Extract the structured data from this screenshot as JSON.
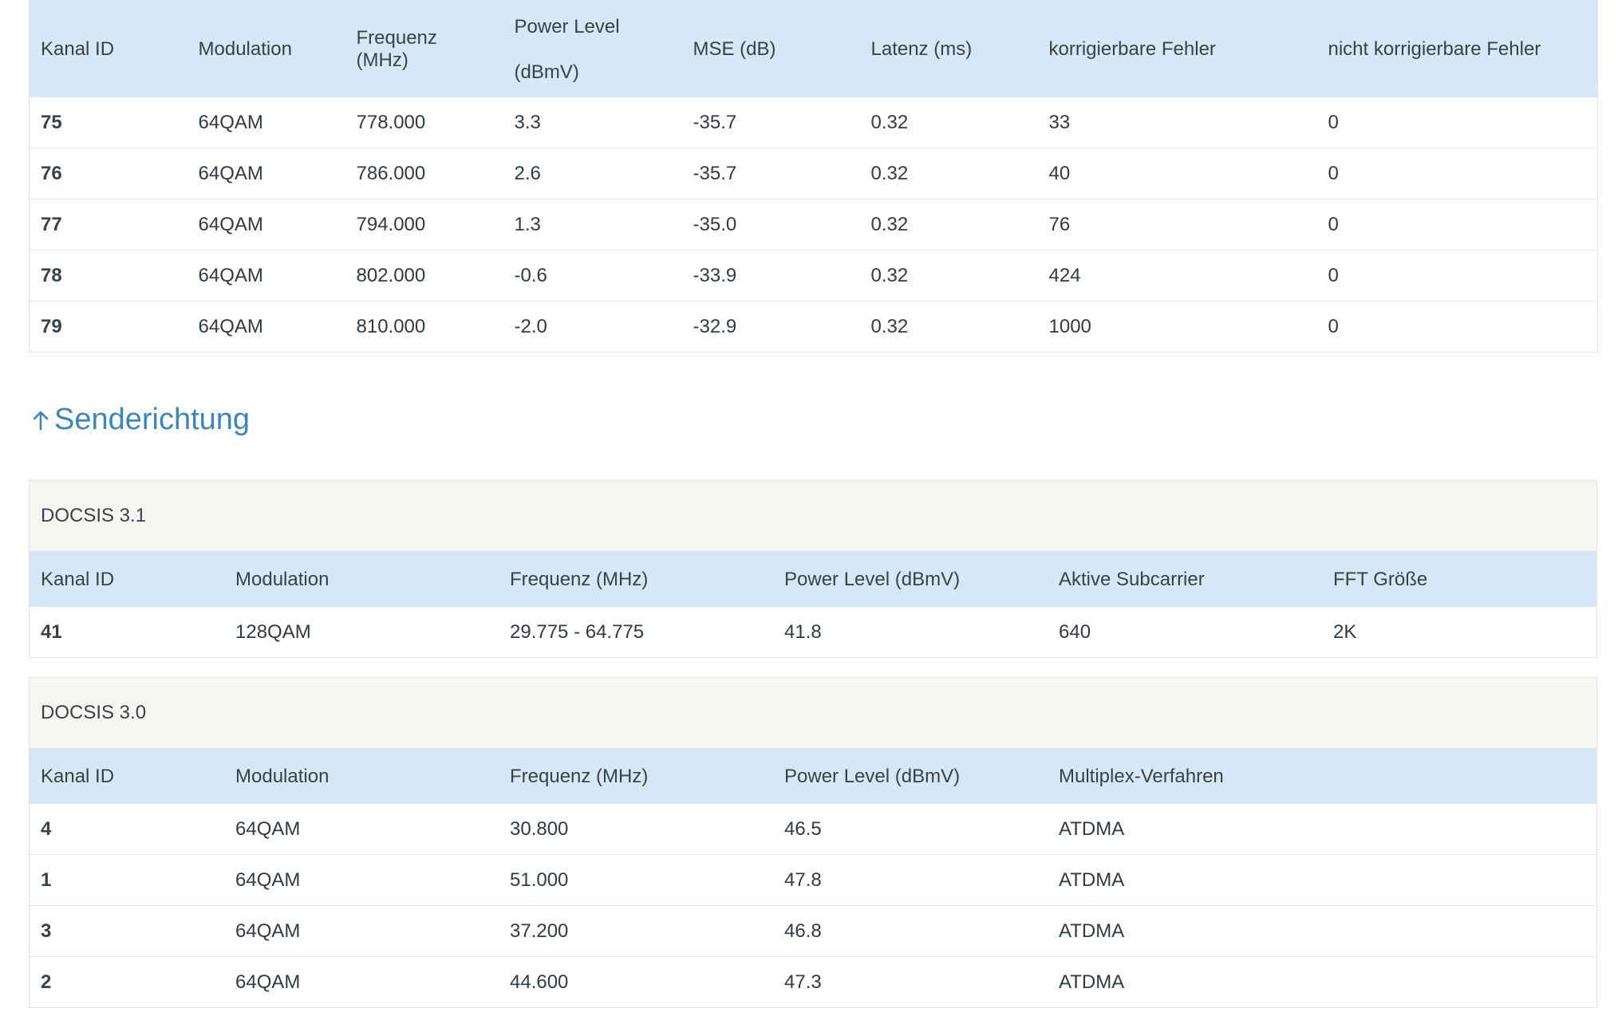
{
  "downstream": {
    "headers": [
      "Kanal ID",
      "Modulation",
      "Frequenz (MHz)",
      "Power Level",
      "(dBmV)",
      "MSE (dB)",
      "Latenz (ms)",
      "korrigierbare Fehler",
      "nicht korrigierbare Fehler"
    ],
    "rows": [
      {
        "id": "75",
        "mod": "64QAM",
        "freq": "778.000",
        "power": "3.3",
        "mse": "-35.7",
        "lat": "0.32",
        "korr": "33",
        "nkorr": "0"
      },
      {
        "id": "76",
        "mod": "64QAM",
        "freq": "786.000",
        "power": "2.6",
        "mse": "-35.7",
        "lat": "0.32",
        "korr": "40",
        "nkorr": "0"
      },
      {
        "id": "77",
        "mod": "64QAM",
        "freq": "794.000",
        "power": "1.3",
        "mse": "-35.0",
        "lat": "0.32",
        "korr": "76",
        "nkorr": "0"
      },
      {
        "id": "78",
        "mod": "64QAM",
        "freq": "802.000",
        "power": "-0.6",
        "mse": "-33.9",
        "lat": "0.32",
        "korr": "424",
        "nkorr": "0"
      },
      {
        "id": "79",
        "mod": "64QAM",
        "freq": "810.000",
        "power": "-2.0",
        "mse": "-32.9",
        "lat": "0.32",
        "korr": "1000",
        "nkorr": "0"
      }
    ]
  },
  "upstream": {
    "title": "Senderichtung",
    "icon": "arrow-up-icon",
    "accent": "#3b86bb",
    "docsis31": {
      "label": "DOCSIS 3.1",
      "headers": [
        "Kanal ID",
        "Modulation",
        "Frequenz (MHz)",
        "Power Level (dBmV)",
        "Aktive Subcarrier",
        "FFT Größe"
      ],
      "rows": [
        {
          "id": "41",
          "mod": "128QAM",
          "freq": "29.775 - 64.775",
          "power": "41.8",
          "sub": "640",
          "fft": "2K"
        }
      ]
    },
    "docsis30": {
      "label": "DOCSIS 3.0",
      "headers": [
        "Kanal ID",
        "Modulation",
        "Frequenz (MHz)",
        "Power Level (dBmV)",
        "Multiplex-Verfahren"
      ],
      "rows": [
        {
          "id": "4",
          "mod": "64QAM",
          "freq": "30.800",
          "power": "46.5",
          "mux": "ATDMA"
        },
        {
          "id": "1",
          "mod": "64QAM",
          "freq": "51.000",
          "power": "47.8",
          "mux": "ATDMA"
        },
        {
          "id": "3",
          "mod": "64QAM",
          "freq": "37.200",
          "power": "46.8",
          "mux": "ATDMA"
        },
        {
          "id": "2",
          "mod": "64QAM",
          "freq": "44.600",
          "power": "47.3",
          "mux": "ATDMA"
        }
      ]
    }
  },
  "colors": {
    "header_bg": "#d6e8f5",
    "group_bg": "#f5f5f1",
    "link": "#3b86bb"
  }
}
